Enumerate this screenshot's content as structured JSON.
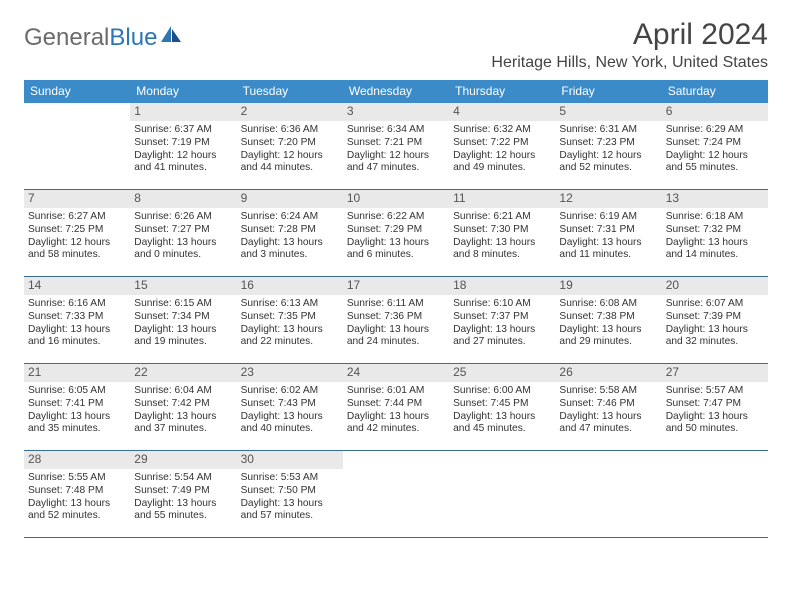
{
  "logo": {
    "text1": "General",
    "text2": "Blue"
  },
  "title": "April 2024",
  "location": "Heritage Hills, New York, United States",
  "colors": {
    "header_bg": "#3b8bc9",
    "header_text": "#ffffff",
    "daynum_bg": "#e9e9e9",
    "row_border": "#3b6d94",
    "logo_gray": "#6b6b6b",
    "logo_blue": "#2e75b6"
  },
  "fonts": {
    "month_title_pt": 30,
    "location_pt": 16,
    "dayhead_pt": 12,
    "daynum_pt": 12,
    "body_pt": 10.2
  },
  "dayNames": [
    "Sunday",
    "Monday",
    "Tuesday",
    "Wednesday",
    "Thursday",
    "Friday",
    "Saturday"
  ],
  "weeks": [
    [
      null,
      {
        "n": "1",
        "sunrise": "Sunrise: 6:37 AM",
        "sunset": "Sunset: 7:19 PM",
        "daylight": "Daylight: 12 hours and 41 minutes."
      },
      {
        "n": "2",
        "sunrise": "Sunrise: 6:36 AM",
        "sunset": "Sunset: 7:20 PM",
        "daylight": "Daylight: 12 hours and 44 minutes."
      },
      {
        "n": "3",
        "sunrise": "Sunrise: 6:34 AM",
        "sunset": "Sunset: 7:21 PM",
        "daylight": "Daylight: 12 hours and 47 minutes."
      },
      {
        "n": "4",
        "sunrise": "Sunrise: 6:32 AM",
        "sunset": "Sunset: 7:22 PM",
        "daylight": "Daylight: 12 hours and 49 minutes."
      },
      {
        "n": "5",
        "sunrise": "Sunrise: 6:31 AM",
        "sunset": "Sunset: 7:23 PM",
        "daylight": "Daylight: 12 hours and 52 minutes."
      },
      {
        "n": "6",
        "sunrise": "Sunrise: 6:29 AM",
        "sunset": "Sunset: 7:24 PM",
        "daylight": "Daylight: 12 hours and 55 minutes."
      }
    ],
    [
      {
        "n": "7",
        "sunrise": "Sunrise: 6:27 AM",
        "sunset": "Sunset: 7:25 PM",
        "daylight": "Daylight: 12 hours and 58 minutes."
      },
      {
        "n": "8",
        "sunrise": "Sunrise: 6:26 AM",
        "sunset": "Sunset: 7:27 PM",
        "daylight": "Daylight: 13 hours and 0 minutes."
      },
      {
        "n": "9",
        "sunrise": "Sunrise: 6:24 AM",
        "sunset": "Sunset: 7:28 PM",
        "daylight": "Daylight: 13 hours and 3 minutes."
      },
      {
        "n": "10",
        "sunrise": "Sunrise: 6:22 AM",
        "sunset": "Sunset: 7:29 PM",
        "daylight": "Daylight: 13 hours and 6 minutes."
      },
      {
        "n": "11",
        "sunrise": "Sunrise: 6:21 AM",
        "sunset": "Sunset: 7:30 PM",
        "daylight": "Daylight: 13 hours and 8 minutes."
      },
      {
        "n": "12",
        "sunrise": "Sunrise: 6:19 AM",
        "sunset": "Sunset: 7:31 PM",
        "daylight": "Daylight: 13 hours and 11 minutes."
      },
      {
        "n": "13",
        "sunrise": "Sunrise: 6:18 AM",
        "sunset": "Sunset: 7:32 PM",
        "daylight": "Daylight: 13 hours and 14 minutes."
      }
    ],
    [
      {
        "n": "14",
        "sunrise": "Sunrise: 6:16 AM",
        "sunset": "Sunset: 7:33 PM",
        "daylight": "Daylight: 13 hours and 16 minutes."
      },
      {
        "n": "15",
        "sunrise": "Sunrise: 6:15 AM",
        "sunset": "Sunset: 7:34 PM",
        "daylight": "Daylight: 13 hours and 19 minutes."
      },
      {
        "n": "16",
        "sunrise": "Sunrise: 6:13 AM",
        "sunset": "Sunset: 7:35 PM",
        "daylight": "Daylight: 13 hours and 22 minutes."
      },
      {
        "n": "17",
        "sunrise": "Sunrise: 6:11 AM",
        "sunset": "Sunset: 7:36 PM",
        "daylight": "Daylight: 13 hours and 24 minutes."
      },
      {
        "n": "18",
        "sunrise": "Sunrise: 6:10 AM",
        "sunset": "Sunset: 7:37 PM",
        "daylight": "Daylight: 13 hours and 27 minutes."
      },
      {
        "n": "19",
        "sunrise": "Sunrise: 6:08 AM",
        "sunset": "Sunset: 7:38 PM",
        "daylight": "Daylight: 13 hours and 29 minutes."
      },
      {
        "n": "20",
        "sunrise": "Sunrise: 6:07 AM",
        "sunset": "Sunset: 7:39 PM",
        "daylight": "Daylight: 13 hours and 32 minutes."
      }
    ],
    [
      {
        "n": "21",
        "sunrise": "Sunrise: 6:05 AM",
        "sunset": "Sunset: 7:41 PM",
        "daylight": "Daylight: 13 hours and 35 minutes."
      },
      {
        "n": "22",
        "sunrise": "Sunrise: 6:04 AM",
        "sunset": "Sunset: 7:42 PM",
        "daylight": "Daylight: 13 hours and 37 minutes."
      },
      {
        "n": "23",
        "sunrise": "Sunrise: 6:02 AM",
        "sunset": "Sunset: 7:43 PM",
        "daylight": "Daylight: 13 hours and 40 minutes."
      },
      {
        "n": "24",
        "sunrise": "Sunrise: 6:01 AM",
        "sunset": "Sunset: 7:44 PM",
        "daylight": "Daylight: 13 hours and 42 minutes."
      },
      {
        "n": "25",
        "sunrise": "Sunrise: 6:00 AM",
        "sunset": "Sunset: 7:45 PM",
        "daylight": "Daylight: 13 hours and 45 minutes."
      },
      {
        "n": "26",
        "sunrise": "Sunrise: 5:58 AM",
        "sunset": "Sunset: 7:46 PM",
        "daylight": "Daylight: 13 hours and 47 minutes."
      },
      {
        "n": "27",
        "sunrise": "Sunrise: 5:57 AM",
        "sunset": "Sunset: 7:47 PM",
        "daylight": "Daylight: 13 hours and 50 minutes."
      }
    ],
    [
      {
        "n": "28",
        "sunrise": "Sunrise: 5:55 AM",
        "sunset": "Sunset: 7:48 PM",
        "daylight": "Daylight: 13 hours and 52 minutes."
      },
      {
        "n": "29",
        "sunrise": "Sunrise: 5:54 AM",
        "sunset": "Sunset: 7:49 PM",
        "daylight": "Daylight: 13 hours and 55 minutes."
      },
      {
        "n": "30",
        "sunrise": "Sunrise: 5:53 AM",
        "sunset": "Sunset: 7:50 PM",
        "daylight": "Daylight: 13 hours and 57 minutes."
      },
      null,
      null,
      null,
      null
    ]
  ]
}
